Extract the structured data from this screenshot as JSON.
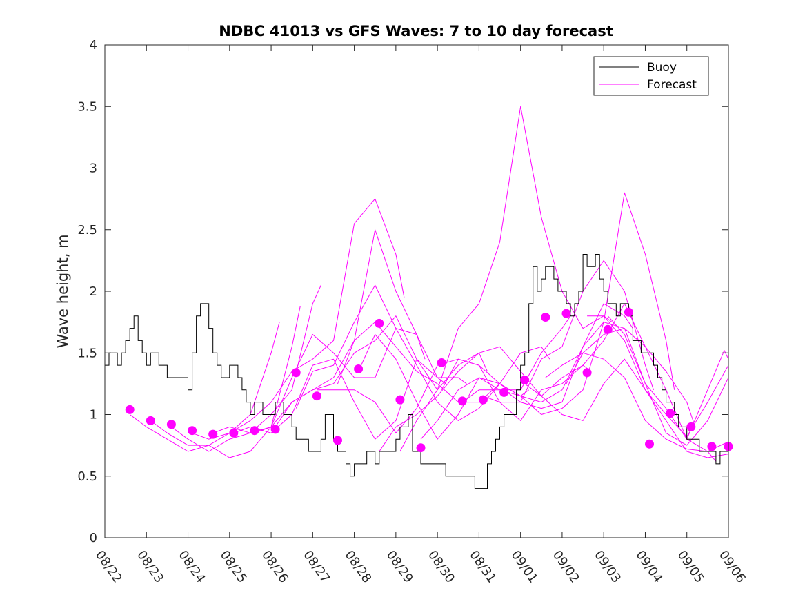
{
  "chart_data": {
    "type": "line",
    "title": "NDBC 41013 vs GFS Waves: 7 to 10 day forecast",
    "xlabel": "",
    "ylabel": "Wave height, m",
    "xlim": [
      0,
      15
    ],
    "ylim": [
      0,
      4
    ],
    "grid": false,
    "legend_position": "top-right",
    "x_ticks": [
      0,
      1,
      2,
      3,
      4,
      5,
      6,
      7,
      8,
      9,
      10,
      11,
      12,
      13,
      14,
      15
    ],
    "x_tick_labels": [
      "08/22",
      "08/23",
      "08/24",
      "08/25",
      "08/26",
      "08/27",
      "08/28",
      "08/29",
      "08/30",
      "08/31",
      "09/01",
      "09/02",
      "09/03",
      "09/04",
      "09/05",
      "09/06"
    ],
    "y_ticks": [
      0,
      0.5,
      1,
      1.5,
      2,
      2.5,
      3,
      3.5,
      4
    ],
    "y_tick_labels": [
      "0",
      "0.5",
      "1",
      "1.5",
      "2",
      "2.5",
      "3",
      "3.5",
      "4"
    ],
    "colors": {
      "buoy": "#000000",
      "forecast": "#ff00ff",
      "axis": "#262626"
    },
    "legend": [
      {
        "name": "Buoy",
        "key": "buoy"
      },
      {
        "name": "Forecast",
        "key": "forecast"
      }
    ],
    "buoy": {
      "name": "Buoy",
      "x": [
        0,
        0.1,
        0.2,
        0.3,
        0.4,
        0.5,
        0.6,
        0.7,
        0.8,
        0.9,
        1.0,
        1.1,
        1.2,
        1.3,
        1.4,
        1.5,
        1.6,
        1.7,
        1.8,
        1.9,
        2.0,
        2.1,
        2.2,
        2.3,
        2.4,
        2.5,
        2.6,
        2.7,
        2.8,
        2.9,
        3.0,
        3.1,
        3.2,
        3.3,
        3.4,
        3.5,
        3.6,
        3.7,
        3.8,
        3.9,
        4.0,
        4.1,
        4.2,
        4.3,
        4.4,
        4.5,
        4.6,
        4.7,
        4.8,
        4.9,
        5.0,
        5.1,
        5.2,
        5.3,
        5.4,
        5.5,
        5.6,
        5.7,
        5.8,
        5.9,
        6.0,
        6.1,
        6.2,
        6.3,
        6.4,
        6.5,
        6.6,
        6.7,
        6.8,
        6.9,
        7.0,
        7.1,
        7.2,
        7.3,
        7.4,
        7.5,
        7.6,
        7.7,
        7.8,
        7.9,
        8.0,
        8.1,
        8.2,
        8.3,
        8.4,
        8.5,
        8.6,
        8.7,
        8.8,
        8.9,
        9.0,
        9.1,
        9.2,
        9.3,
        9.4,
        9.5,
        9.6,
        9.7,
        9.8,
        9.9,
        10.0,
        10.1,
        10.2,
        10.3,
        10.4,
        10.5,
        10.6,
        10.7,
        10.8,
        10.9,
        11.0,
        11.1,
        11.2,
        11.3,
        11.4,
        11.5,
        11.6,
        11.7,
        11.8,
        11.9,
        12.0,
        12.1,
        12.2,
        12.3,
        12.4,
        12.5,
        12.6,
        12.7,
        12.8,
        12.9,
        13.0,
        13.1,
        13.2,
        13.3,
        13.4,
        13.5,
        13.6,
        13.7,
        13.8,
        13.9,
        14.0,
        14.1,
        14.2,
        14.3,
        14.4,
        14.5,
        14.6,
        14.7,
        14.8,
        14.9,
        15.0
      ],
      "values": [
        1.4,
        1.5,
        1.5,
        1.4,
        1.5,
        1.6,
        1.7,
        1.8,
        1.6,
        1.5,
        1.4,
        1.5,
        1.5,
        1.4,
        1.4,
        1.3,
        1.3,
        1.3,
        1.3,
        1.3,
        1.2,
        1.5,
        1.8,
        1.9,
        1.9,
        1.7,
        1.5,
        1.4,
        1.3,
        1.3,
        1.4,
        1.4,
        1.3,
        1.2,
        1.1,
        1.0,
        1.1,
        1.1,
        1.0,
        1.0,
        1.0,
        1.1,
        1.1,
        1.0,
        1.0,
        0.9,
        0.8,
        0.8,
        0.8,
        0.7,
        0.7,
        0.7,
        0.8,
        1.0,
        1.0,
        0.8,
        0.7,
        0.7,
        0.6,
        0.5,
        0.6,
        0.6,
        0.6,
        0.7,
        0.7,
        0.6,
        0.7,
        0.7,
        0.7,
        0.7,
        0.8,
        0.9,
        0.9,
        1.0,
        0.7,
        0.7,
        0.6,
        0.6,
        0.6,
        0.6,
        0.6,
        0.6,
        0.5,
        0.5,
        0.5,
        0.5,
        0.5,
        0.5,
        0.5,
        0.4,
        0.4,
        0.4,
        0.6,
        0.7,
        0.8,
        0.9,
        1.0,
        1.0,
        1.0,
        1.2,
        1.4,
        1.5,
        1.9,
        2.2,
        2.0,
        2.1,
        2.2,
        2.2,
        2.1,
        2.0,
        2.0,
        1.9,
        1.8,
        1.9,
        2.0,
        2.3,
        2.2,
        2.2,
        2.3,
        2.1,
        2.0,
        1.9,
        1.9,
        1.8,
        1.9,
        1.9,
        1.8,
        1.6,
        1.6,
        1.5,
        1.5,
        1.5,
        1.4,
        1.3,
        1.2,
        1.1,
        1.1,
        1.0,
        0.9,
        0.9,
        0.8,
        0.8,
        0.8,
        0.7,
        0.7,
        0.7,
        0.7,
        0.6,
        0.7,
        0.7,
        0.7
      ]
    },
    "forecast_series": [
      {
        "name": "Forecast",
        "x": [
          0.6,
          1.0,
          1.5,
          2.0,
          2.5,
          3.0,
          3.5,
          4.0,
          4.2
        ],
        "values": [
          1.0,
          0.9,
          0.8,
          0.7,
          0.75,
          0.85,
          1.0,
          1.5,
          1.75
        ]
      },
      {
        "name": "Forecast",
        "x": [
          1.1,
          1.5,
          2.0,
          2.5,
          3.0,
          3.5,
          4.0,
          4.5,
          4.7
        ],
        "values": [
          0.95,
          0.85,
          0.75,
          0.75,
          0.65,
          0.7,
          0.9,
          1.55,
          1.88
        ]
      },
      {
        "name": "Forecast",
        "x": [
          1.6,
          2.0,
          2.5,
          3.0,
          3.5,
          4.0,
          4.5,
          5.0,
          5.2
        ],
        "values": [
          0.9,
          0.8,
          0.7,
          0.8,
          0.85,
          1.0,
          1.2,
          1.9,
          2.05
        ]
      },
      {
        "name": "Forecast",
        "x": [
          2.1,
          2.5,
          3.0,
          3.5,
          4.0,
          4.5,
          5.0,
          5.5,
          6.0,
          6.5,
          7.0,
          7.2
        ],
        "values": [
          0.85,
          0.8,
          0.85,
          0.95,
          1.1,
          1.35,
          1.45,
          1.6,
          2.55,
          2.75,
          2.3,
          1.95
        ]
      },
      {
        "name": "Forecast",
        "x": [
          2.6,
          3.0,
          3.5,
          4.0,
          4.5,
          5.0,
          5.5,
          6.0,
          6.5,
          7.0,
          7.5,
          7.7
        ],
        "values": [
          0.85,
          0.9,
          0.85,
          0.9,
          1.3,
          1.65,
          1.5,
          1.3,
          1.3,
          1.7,
          1.65,
          1.45
        ]
      },
      {
        "name": "Forecast",
        "x": [
          3.1,
          3.5,
          4.0,
          4.5,
          5.0,
          5.5,
          6.0,
          6.5,
          7.0,
          7.5,
          8.0,
          8.2
        ],
        "values": [
          0.85,
          0.9,
          0.85,
          1.0,
          1.4,
          1.45,
          1.1,
          0.8,
          0.95,
          1.45,
          1.3,
          1.25
        ]
      },
      {
        "name": "Forecast",
        "x": [
          3.6,
          4.0,
          4.5,
          5.0,
          5.5,
          6.0,
          6.5,
          7.0,
          7.5,
          8.0,
          8.5,
          8.7
        ],
        "values": [
          0.85,
          0.9,
          1.1,
          1.2,
          1.3,
          1.6,
          2.5,
          2.0,
          1.65,
          1.3,
          1.3,
          1.25
        ]
      },
      {
        "name": "Forecast",
        "x": [
          4.1,
          4.5,
          5.0,
          5.5,
          6.0,
          6.5,
          7.0,
          7.5,
          8.0,
          8.5,
          9.0,
          9.2
        ],
        "values": [
          0.9,
          1.1,
          1.2,
          1.25,
          1.5,
          1.6,
          1.8,
          1.45,
          1.2,
          1.4,
          1.5,
          1.35
        ]
      },
      {
        "name": "Forecast",
        "x": [
          4.6,
          5.0,
          5.5,
          6.0,
          6.5,
          7.0,
          7.5,
          8.0,
          8.5,
          9.0,
          9.5,
          9.7
        ],
        "values": [
          1.05,
          1.35,
          1.4,
          1.75,
          2.05,
          1.7,
          1.4,
          1.1,
          0.95,
          1.05,
          1.25,
          1.2
        ]
      },
      {
        "name": "Forecast",
        "x": [
          5.1,
          5.5,
          6.0,
          6.5,
          7.0,
          7.5,
          8.0,
          8.5,
          9.0,
          9.5,
          10.0,
          10.2
        ],
        "values": [
          1.2,
          1.2,
          1.2,
          1.1,
          0.85,
          1.05,
          1.4,
          1.45,
          1.4,
          1.25,
          1.15,
          1.2
        ]
      },
      {
        "name": "Forecast",
        "x": [
          5.6,
          6.0,
          6.5,
          7.0,
          7.5,
          8.0,
          8.5,
          9.0,
          9.5,
          10.0,
          10.5,
          10.7
        ],
        "values": [
          1.25,
          1.6,
          1.75,
          1.55,
          1.35,
          1.25,
          1.1,
          1.1,
          1.25,
          1.5,
          1.55,
          1.45
        ]
      },
      {
        "name": "Forecast",
        "x": [
          6.1,
          6.5,
          7.0,
          7.5,
          8.0,
          8.5,
          9.0,
          9.5,
          10.0,
          10.5,
          11.0,
          11.2
        ],
        "values": [
          1.35,
          1.65,
          1.45,
          1.1,
          0.8,
          1.0,
          1.3,
          1.2,
          1.2,
          1.5,
          1.7,
          1.8
        ]
      },
      {
        "name": "Forecast",
        "x": [
          6.6,
          7.0,
          7.5,
          8.0,
          8.5,
          9.0,
          9.5,
          10.0,
          10.5,
          11.0,
          11.5,
          11.7
        ],
        "values": [
          0.7,
          0.9,
          1.0,
          1.15,
          1.35,
          1.5,
          1.55,
          1.35,
          1.15,
          1.3,
          1.4,
          1.35
        ]
      },
      {
        "name": "Forecast",
        "x": [
          7.1,
          7.5,
          8.0,
          8.5,
          9.0,
          9.5,
          10.0,
          10.5,
          11.0,
          11.5,
          12.0,
          12.2
        ],
        "values": [
          0.7,
          0.95,
          1.2,
          1.7,
          1.9,
          2.4,
          3.5,
          2.6,
          2.0,
          1.7,
          1.8,
          1.75
        ]
      },
      {
        "name": "Forecast",
        "x": [
          7.6,
          8.0,
          8.5,
          9.0,
          9.5,
          10.0,
          10.5,
          11.0,
          11.5,
          12.0,
          12.5,
          12.7
        ],
        "values": [
          0.8,
          0.95,
          1.2,
          1.3,
          1.25,
          1.15,
          1.1,
          1.2,
          1.55,
          1.9,
          1.8,
          1.7
        ]
      },
      {
        "name": "Forecast",
        "x": [
          8.1,
          8.5,
          9.0,
          9.5,
          10.0,
          10.5,
          11.0,
          11.5,
          12.0,
          12.5,
          13.0,
          13.2
        ],
        "values": [
          1.2,
          1.45,
          1.4,
          1.1,
          1.1,
          1.45,
          1.55,
          2.0,
          2.25,
          2.0,
          1.4,
          1.2
        ]
      },
      {
        "name": "Forecast",
        "x": [
          8.6,
          9.0,
          9.5,
          10.0,
          10.5,
          11.0,
          11.5,
          12.0,
          12.5,
          13.0,
          13.5,
          13.7
        ],
        "values": [
          1.1,
          1.2,
          1.2,
          1.15,
          1.0,
          1.05,
          1.2,
          1.75,
          2.8,
          2.3,
          1.6,
          1.2
        ]
      },
      {
        "name": "Forecast",
        "x": [
          9.1,
          9.5,
          10.0,
          10.5,
          11.0,
          11.5,
          12.0,
          12.5,
          13.0,
          13.5,
          14.0,
          14.2
        ],
        "values": [
          1.15,
          1.1,
          0.95,
          1.2,
          1.25,
          1.4,
          1.6,
          1.9,
          1.55,
          1.35,
          1.1,
          0.9
        ]
      },
      {
        "name": "Forecast",
        "x": [
          9.6,
          10.0,
          10.5,
          11.0,
          11.5,
          12.0,
          12.5,
          13.0,
          13.5,
          14.0,
          14.5,
          14.7
        ],
        "values": [
          1.2,
          1.1,
          1.05,
          1.1,
          1.55,
          1.75,
          1.7,
          1.55,
          1.2,
          0.8,
          0.7,
          0.62
        ]
      },
      {
        "name": "Forecast",
        "x": [
          10.1,
          10.5,
          11.0,
          11.5,
          12.0,
          12.5,
          13.0,
          13.5,
          14.0,
          14.5,
          15.0
        ],
        "values": [
          1.25,
          1.15,
          1.0,
          0.95,
          1.25,
          1.45,
          1.2,
          0.95,
          0.7,
          0.65,
          0.68
        ]
      },
      {
        "name": "Forecast",
        "x": [
          10.6,
          11.0,
          11.5,
          12.0,
          12.5,
          13.0,
          13.5,
          14.0,
          14.5,
          15.0
        ],
        "values": [
          1.3,
          1.4,
          1.5,
          1.45,
          1.3,
          0.95,
          0.8,
          0.72,
          0.7,
          0.78
        ]
      },
      {
        "name": "Forecast",
        "x": [
          11.1,
          11.5,
          12.0,
          12.5,
          13.0,
          13.5,
          14.0,
          14.5,
          15.0
        ],
        "values": [
          1.25,
          1.5,
          1.65,
          1.7,
          1.25,
          0.85,
          0.75,
          0.95,
          1.3
        ]
      },
      {
        "name": "Forecast",
        "x": [
          11.6,
          12.0,
          12.5,
          13.0,
          13.5,
          14.0,
          14.5,
          15.0
        ],
        "values": [
          1.8,
          1.8,
          1.6,
          1.2,
          1.0,
          0.82,
          1.1,
          1.4
        ]
      },
      {
        "name": "Forecast",
        "x": [
          12.1,
          12.5,
          13.0,
          13.5,
          14.0,
          14.5,
          14.9,
          15.0
        ],
        "values": [
          1.8,
          1.65,
          1.25,
          1.05,
          0.8,
          1.2,
          1.52,
          1.45
        ]
      }
    ],
    "forecast_points": {
      "x": [
        0.6,
        1.1,
        1.6,
        2.1,
        2.6,
        3.1,
        3.6,
        4.1,
        4.6,
        5.1,
        5.6,
        6.1,
        6.6,
        7.1,
        7.6,
        8.1,
        8.6,
        9.1,
        9.6,
        10.1,
        10.6,
        11.1,
        11.6,
        12.1,
        12.6,
        13.1,
        13.6,
        14.1,
        14.6,
        15.0
      ],
      "values": [
        1.04,
        0.95,
        0.92,
        0.87,
        0.84,
        0.85,
        0.87,
        0.88,
        1.34,
        1.15,
        0.79,
        1.37,
        1.74,
        1.12,
        0.73,
        1.42,
        1.11,
        1.12,
        1.18,
        1.28,
        1.79,
        1.82,
        1.34,
        1.69,
        1.83,
        0.76,
        1.01,
        0.9,
        0.74,
        0.74
      ]
    }
  }
}
